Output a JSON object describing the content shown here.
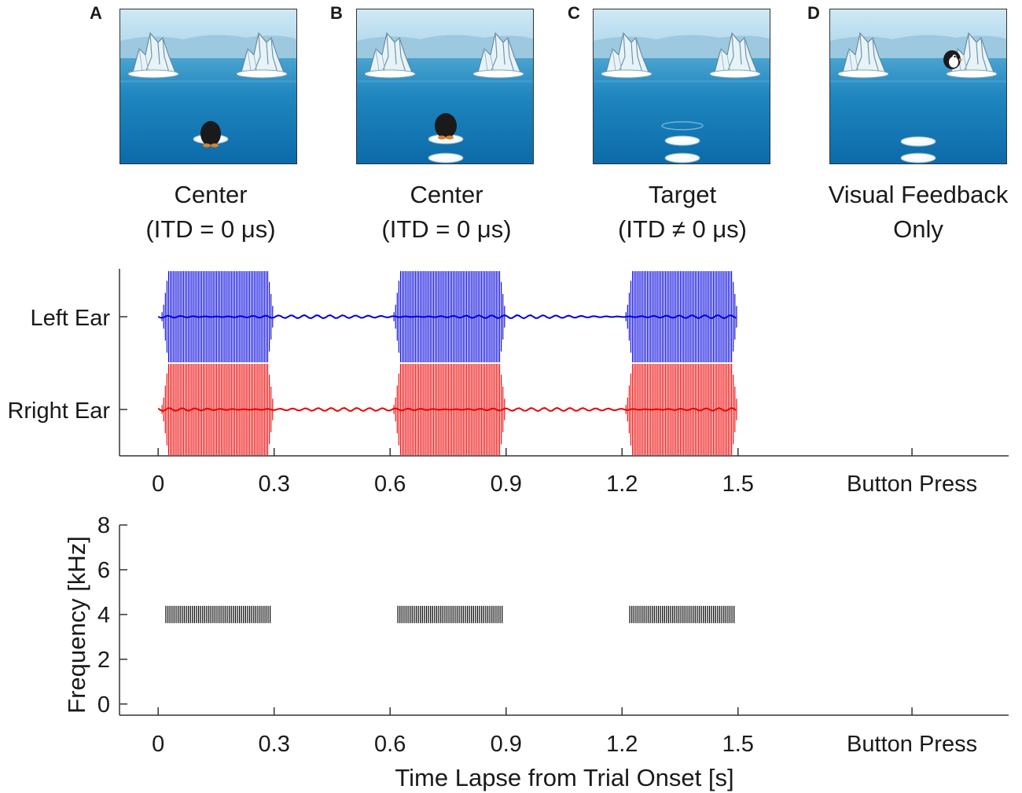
{
  "panels": [
    {
      "letter": "A",
      "caption_line1": "Center",
      "caption_line2": "(ITD = 0 μs)",
      "scene": "penguin-on-floe"
    },
    {
      "letter": "B",
      "caption_line1": "Center",
      "caption_line2": "(ITD = 0 μs)",
      "scene": "penguin-jumped"
    },
    {
      "letter": "C",
      "caption_line1": "Target",
      "caption_line2": "(ITD ≠ 0 μs)",
      "scene": "floe-ripple"
    },
    {
      "letter": "D",
      "caption_line1": "Visual Feedback",
      "caption_line2": "Only",
      "scene": "penguin-on-iceberg"
    }
  ],
  "chart_data": [
    {
      "type": "line",
      "title": "",
      "series": [
        {
          "name": "Left Ear",
          "color": "#0000dd"
        },
        {
          "name": "Rright Ear",
          "color": "#ee0000"
        }
      ],
      "tone_bursts": [
        [
          0.02,
          0.29
        ],
        [
          0.62,
          0.89
        ],
        [
          1.22,
          1.49
        ]
      ],
      "x_ticks": [
        {
          "value": 0,
          "label": "0"
        },
        {
          "value": 0.3,
          "label": "0.3"
        },
        {
          "value": 0.6,
          "label": "0.6"
        },
        {
          "value": 0.9,
          "label": "0.9"
        },
        {
          "value": 1.2,
          "label": "1.2"
        },
        {
          "value": 1.5,
          "label": "1.5"
        },
        {
          "value": 1.95,
          "label": "Button Press"
        }
      ],
      "xlim": [
        -0.1,
        2.2
      ]
    },
    {
      "type": "heatmap",
      "ylabel": "Frequency [kHz]",
      "xlabel": "Time Lapse from Trial Onset [s]",
      "ylim": [
        -0.5,
        8
      ],
      "y_ticks": [
        0,
        2,
        4,
        6,
        8
      ],
      "frequency_khz": 4,
      "tone_bursts": [
        [
          0.02,
          0.29
        ],
        [
          0.62,
          0.89
        ],
        [
          1.22,
          1.49
        ]
      ],
      "x_ticks": [
        {
          "value": 0,
          "label": "0"
        },
        {
          "value": 0.3,
          "label": "0.3"
        },
        {
          "value": 0.6,
          "label": "0.6"
        },
        {
          "value": 0.9,
          "label": "0.9"
        },
        {
          "value": 1.2,
          "label": "1.2"
        },
        {
          "value": 1.5,
          "label": "1.5"
        },
        {
          "value": 1.95,
          "label": "Button Press"
        }
      ],
      "xlim": [
        -0.1,
        2.2
      ]
    }
  ]
}
